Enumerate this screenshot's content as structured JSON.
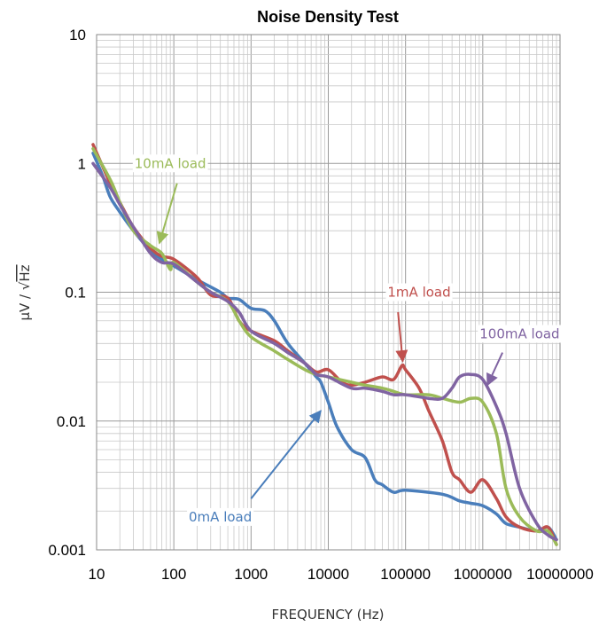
{
  "chart_data": {
    "type": "line",
    "title": "Noise Density Test",
    "xlabel": "FREQUENCY (Hz)",
    "ylabel_prefix": "µV / √",
    "ylabel_radicand": "Hz",
    "x_scale": "log",
    "y_scale": "log",
    "xlim": [
      10,
      10000000
    ],
    "ylim": [
      0.001,
      10
    ],
    "x_ticks": [
      10,
      100,
      1000,
      10000,
      100000,
      1000000,
      10000000
    ],
    "x_tick_labels": [
      "10",
      "100",
      "1000",
      "10000",
      "100000",
      "1000000",
      "10000000"
    ],
    "y_ticks": [
      0.001,
      0.01,
      0.1,
      1,
      10
    ],
    "y_tick_labels": [
      "0.001",
      "0.01",
      "0.1",
      "1",
      "10"
    ],
    "grid": true,
    "legend": "none",
    "series": [
      {
        "label": "0mA load",
        "color": "#4a7ebb",
        "points": [
          [
            9,
            1.2
          ],
          [
            12,
            0.8
          ],
          [
            15,
            0.55
          ],
          [
            20,
            0.42
          ],
          [
            30,
            0.3
          ],
          [
            50,
            0.21
          ],
          [
            70,
            0.18
          ],
          [
            100,
            0.16
          ],
          [
            200,
            0.125
          ],
          [
            400,
            0.1
          ],
          [
            500,
            0.09
          ],
          [
            700,
            0.088
          ],
          [
            1000,
            0.075
          ],
          [
            1500,
            0.072
          ],
          [
            2000,
            0.06
          ],
          [
            3000,
            0.04
          ],
          [
            5000,
            0.028
          ],
          [
            7000,
            0.022
          ],
          [
            8000,
            0.02
          ],
          [
            10000,
            0.014
          ],
          [
            13000,
            0.009
          ],
          [
            20000,
            0.006
          ],
          [
            30000,
            0.0052
          ],
          [
            40000,
            0.0035
          ],
          [
            50000,
            0.0032
          ],
          [
            70000,
            0.0028
          ],
          [
            100000,
            0.0029
          ],
          [
            300000,
            0.0027
          ],
          [
            500000,
            0.0024
          ],
          [
            700000,
            0.0023
          ],
          [
            1000000,
            0.0022
          ],
          [
            1500000,
            0.0019
          ],
          [
            2000000,
            0.0016
          ],
          [
            3000000,
            0.0015
          ],
          [
            5000000,
            0.0014
          ],
          [
            7000000,
            0.0015
          ],
          [
            9000000,
            0.0012
          ]
        ]
      },
      {
        "label": "1mA load",
        "color": "#c0504d",
        "points": [
          [
            9,
            1.4
          ],
          [
            15,
            0.7
          ],
          [
            20,
            0.5
          ],
          [
            30,
            0.32
          ],
          [
            50,
            0.22
          ],
          [
            70,
            0.19
          ],
          [
            100,
            0.18
          ],
          [
            200,
            0.13
          ],
          [
            300,
            0.095
          ],
          [
            500,
            0.09
          ],
          [
            700,
            0.06
          ],
          [
            1000,
            0.05
          ],
          [
            2000,
            0.042
          ],
          [
            3000,
            0.035
          ],
          [
            5000,
            0.028
          ],
          [
            7000,
            0.024
          ],
          [
            10000,
            0.025
          ],
          [
            15000,
            0.02
          ],
          [
            20000,
            0.019
          ],
          [
            30000,
            0.02
          ],
          [
            50000,
            0.022
          ],
          [
            70000,
            0.021
          ],
          [
            90000,
            0.027
          ],
          [
            100000,
            0.025
          ],
          [
            150000,
            0.018
          ],
          [
            200000,
            0.012
          ],
          [
            300000,
            0.007
          ],
          [
            400000,
            0.004
          ],
          [
            500000,
            0.0035
          ],
          [
            700000,
            0.0028
          ],
          [
            1000000,
            0.0035
          ],
          [
            1500000,
            0.0025
          ],
          [
            2000000,
            0.0018
          ],
          [
            3000000,
            0.0015
          ],
          [
            5000000,
            0.0014
          ],
          [
            7000000,
            0.0015
          ],
          [
            9000000,
            0.0011
          ]
        ]
      },
      {
        "label": "10mA load",
        "color": "#9bbb59",
        "points": [
          [
            9,
            1.3
          ],
          [
            15,
            0.75
          ],
          [
            20,
            0.5
          ],
          [
            30,
            0.3
          ],
          [
            50,
            0.23
          ],
          [
            70,
            0.2
          ],
          [
            90,
            0.15
          ],
          [
            100,
            0.17
          ],
          [
            200,
            0.12
          ],
          [
            300,
            0.1
          ],
          [
            500,
            0.085
          ],
          [
            700,
            0.06
          ],
          [
            1000,
            0.045
          ],
          [
            2000,
            0.035
          ],
          [
            3000,
            0.03
          ],
          [
            5000,
            0.025
          ],
          [
            7000,
            0.023
          ],
          [
            10000,
            0.022
          ],
          [
            20000,
            0.02
          ],
          [
            30000,
            0.019
          ],
          [
            50000,
            0.018
          ],
          [
            70000,
            0.017
          ],
          [
            100000,
            0.016
          ],
          [
            200000,
            0.016
          ],
          [
            300000,
            0.015
          ],
          [
            500000,
            0.014
          ],
          [
            700000,
            0.015
          ],
          [
            1000000,
            0.014
          ],
          [
            1500000,
            0.008
          ],
          [
            2000000,
            0.003
          ],
          [
            3000000,
            0.0018
          ],
          [
            5000000,
            0.0014
          ],
          [
            7000000,
            0.0014
          ],
          [
            9000000,
            0.0011
          ]
        ]
      },
      {
        "label": "100mA load",
        "color": "#8064a2",
        "points": [
          [
            9,
            1.0
          ],
          [
            15,
            0.65
          ],
          [
            20,
            0.48
          ],
          [
            30,
            0.32
          ],
          [
            50,
            0.2
          ],
          [
            70,
            0.17
          ],
          [
            100,
            0.165
          ],
          [
            200,
            0.12
          ],
          [
            300,
            0.1
          ],
          [
            500,
            0.085
          ],
          [
            700,
            0.07
          ],
          [
            1000,
            0.05
          ],
          [
            2000,
            0.04
          ],
          [
            3000,
            0.034
          ],
          [
            5000,
            0.028
          ],
          [
            7000,
            0.023
          ],
          [
            10000,
            0.022
          ],
          [
            20000,
            0.018
          ],
          [
            30000,
            0.018
          ],
          [
            50000,
            0.017
          ],
          [
            70000,
            0.016
          ],
          [
            100000,
            0.016
          ],
          [
            200000,
            0.015
          ],
          [
            300000,
            0.015
          ],
          [
            400000,
            0.018
          ],
          [
            500000,
            0.022
          ],
          [
            700000,
            0.023
          ],
          [
            1000000,
            0.021
          ],
          [
            1500000,
            0.013
          ],
          [
            2000000,
            0.008
          ],
          [
            3000000,
            0.003
          ],
          [
            5000000,
            0.0016
          ],
          [
            7000000,
            0.0013
          ],
          [
            9000000,
            0.0012
          ]
        ]
      }
    ],
    "annotations": [
      {
        "label": "10mA load",
        "color": "#9bbb59",
        "text_x": 90,
        "text_y": 1.0,
        "arrow_from": [
          110,
          0.7
        ],
        "arrow_to": [
          65,
          0.24
        ]
      },
      {
        "label": "1mA load",
        "color": "#c0504d",
        "text_x": 150000,
        "text_y": 0.1,
        "arrow_from": [
          80000,
          0.07
        ],
        "arrow_to": [
          92000,
          0.029
        ]
      },
      {
        "label": "100mA load",
        "color": "#8064a2",
        "text_x": 3000000,
        "text_y": 0.0475,
        "arrow_from": [
          1800000,
          0.034
        ],
        "arrow_to": [
          1150000,
          0.019
        ]
      },
      {
        "label": "0mA load",
        "color": "#4a7ebb",
        "text_x": 400,
        "text_y": 0.0018,
        "arrow_from": [
          1000,
          0.0025
        ],
        "arrow_to": [
          8000,
          0.012
        ]
      }
    ]
  }
}
